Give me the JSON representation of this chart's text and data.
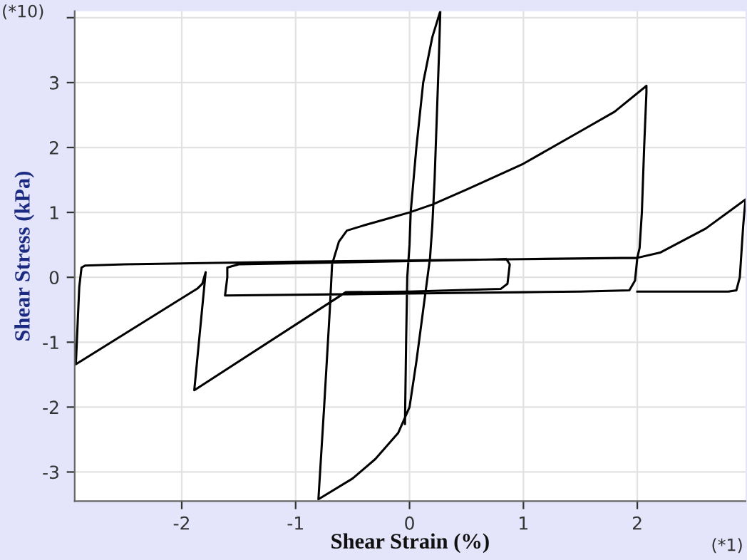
{
  "chart_data": {
    "type": "line",
    "xlabel": "Shear Strain (%)",
    "ylabel": "Shear Stress (kPa)",
    "annotations": [
      "(*10)",
      "(*1)"
    ],
    "xlim": [
      -2.94,
      2.95
    ],
    "ylim": [
      -3.45,
      4.1
    ],
    "xticks": [
      -2,
      -1,
      0,
      1,
      2
    ],
    "yticks": [
      -3,
      -2,
      -1,
      0,
      1,
      2,
      3,
      {
        "value": 4,
        "label": null
      }
    ],
    "grid": true,
    "marker": "none",
    "line_style": "solid",
    "series": [
      {
        "color": "#000000",
        "x": [
          -0.04,
          -0.03,
          -0.02,
          0.0,
          0.01,
          0.06,
          0.12,
          0.2,
          0.27,
          0.26,
          0.24,
          0.22,
          0.2,
          0.18,
          0.12,
          0.06,
          0.0,
          -0.1,
          -0.3,
          -0.5,
          -0.8,
          -0.75,
          -0.7,
          -0.68,
          -0.62,
          -0.55,
          -0.4,
          -0.2,
          0.0,
          0.2,
          0.5,
          1.0,
          1.5,
          1.8,
          2.08,
          2.08,
          2.06,
          2.04,
          2.02,
          2.0,
          1.98,
          1.93,
          1.5,
          1.0,
          0.5,
          0.0,
          -0.5,
          -1.62,
          -1.6,
          -1.6,
          -1.5,
          0.0,
          0.85,
          0.88,
          0.86,
          0.8,
          0.0,
          -0.56,
          -1.89,
          -1.79,
          -1.82,
          -1.86,
          -2.93,
          -2.9,
          -2.88,
          -2.85,
          -2.5,
          -1.0,
          0.0,
          1.0,
          2.0,
          2.2,
          2.6,
          2.95,
          2.93,
          2.9,
          2.87,
          2.8,
          2.5,
          2.0
        ],
        "values": [
          -2.26,
          -1.0,
          0.0,
          0.5,
          1.0,
          2.0,
          3.0,
          3.7,
          4.1,
          3.5,
          2.5,
          1.5,
          0.8,
          0.3,
          -0.5,
          -1.3,
          -2.0,
          -2.4,
          -2.8,
          -3.1,
          -3.42,
          -2.0,
          -0.5,
          0.2,
          0.55,
          0.72,
          0.8,
          0.9,
          1.0,
          1.12,
          1.35,
          1.75,
          2.25,
          2.55,
          2.95,
          2.85,
          2.0,
          1.0,
          0.45,
          0.3,
          -0.05,
          -0.2,
          -0.22,
          -0.23,
          -0.24,
          -0.25,
          -0.26,
          -0.28,
          0.0,
          0.15,
          0.2,
          0.25,
          0.28,
          0.2,
          -0.1,
          -0.18,
          -0.22,
          -0.23,
          -1.74,
          0.08,
          -0.1,
          -0.17,
          -1.34,
          -0.15,
          0.15,
          0.18,
          0.2,
          0.24,
          0.26,
          0.28,
          0.3,
          0.38,
          0.75,
          1.2,
          0.8,
          0.0,
          -0.2,
          -0.22,
          -0.22,
          -0.22
        ]
      }
    ]
  }
}
